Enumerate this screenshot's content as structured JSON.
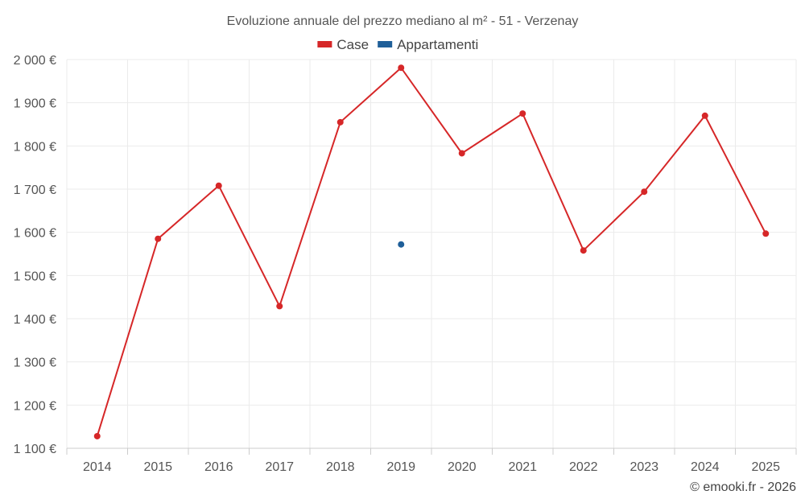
{
  "chart_data": {
    "type": "line",
    "title": "Evoluzione annuale del prezzo mediano al m² - 51 - Verzenay",
    "x": [
      "2014",
      "2015",
      "2016",
      "2017",
      "2018",
      "2019",
      "2020",
      "2021",
      "2022",
      "2023",
      "2024",
      "2025"
    ],
    "ylim": [
      1100,
      2000
    ],
    "yticks": [
      1100,
      1200,
      1300,
      1400,
      1500,
      1600,
      1700,
      1800,
      1900,
      2000
    ],
    "ytick_labels": [
      "1 100 €",
      "1 200 €",
      "1 300 €",
      "1 400 €",
      "1 500 €",
      "1 600 €",
      "1 700 €",
      "1 800 €",
      "1 900 €",
      "2 000 €"
    ],
    "grid": true,
    "legend_position": "top-center",
    "series": [
      {
        "name": "Case",
        "color": "#d62728",
        "values": [
          1128,
          1585,
          1708,
          1429,
          1855,
          1981,
          1783,
          1875,
          1558,
          1694,
          1870,
          1597
        ]
      },
      {
        "name": "Appartamenti",
        "color": "#1f5f99",
        "values": [
          null,
          null,
          null,
          null,
          null,
          1572,
          null,
          null,
          null,
          null,
          null,
          null
        ]
      }
    ]
  },
  "credit": "© emooki.fr - 2026"
}
